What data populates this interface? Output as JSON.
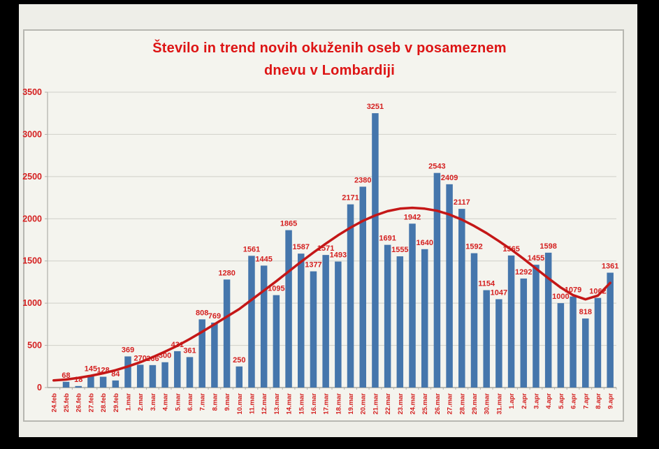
{
  "frame": {
    "background": "#000000",
    "slide_background": "#eeeee8",
    "panel_background": "#f4f4ee"
  },
  "chart_data": {
    "type": "bar",
    "title_line1": "Število in trend novih okuženih oseb v posameznem",
    "title_line2": "dnevu v Lombardiji",
    "title_color": "#dd1414",
    "xlabel": "",
    "ylabel": "",
    "ylim": [
      0,
      3500
    ],
    "yticks": [
      0,
      500,
      1000,
      1500,
      2000,
      2500,
      3000,
      3500
    ],
    "grid": true,
    "legend": "none",
    "bar_color": "#4576ac",
    "value_label_color": "#d42020",
    "axis_label_color": "#d42020",
    "trend_color": "#c41717",
    "categories": [
      "24.feb",
      "25.feb",
      "26.feb",
      "27.feb",
      "28.feb",
      "29.feb",
      "1.mar",
      "2.mar",
      "3.mar",
      "4.mar",
      "5.mar",
      "6.mar",
      "7.mar",
      "8.mar",
      "9.mar",
      "10.mar",
      "11.mar",
      "12.mar",
      "13.mar",
      "14.mar",
      "15.mar",
      "16.mar",
      "17.mar",
      "18.mar",
      "19.mar",
      "20.mar",
      "21.mar",
      "22.mar",
      "23.mar",
      "24.mar",
      "25.mar",
      "26.mar",
      "27.mar",
      "28.mar",
      "29.mar",
      "30.mar",
      "31.mar",
      "1.apr",
      "2.apr",
      "3.apr",
      "4.apr",
      "5.apr",
      "6.apr",
      "7.apr",
      "8.apr",
      "9.apr"
    ],
    "values": [
      0,
      68,
      18,
      145,
      128,
      84,
      369,
      270,
      266,
      300,
      431,
      361,
      808,
      769,
      1280,
      250,
      1561,
      1445,
      1095,
      1865,
      1587,
      1377,
      1571,
      1493,
      2171,
      2380,
      3251,
      1691,
      1555,
      1942,
      1640,
      2543,
      2409,
      2117,
      1592,
      1154,
      1047,
      1565,
      1292,
      1455,
      1598,
      1000,
      1079,
      818,
      1062,
      1361
    ],
    "value_labels": [
      "",
      "68",
      "18",
      "145",
      "128",
      "84",
      "369",
      "270",
      "266",
      "300",
      "431",
      "361",
      "808",
      "769",
      "1280",
      "250",
      "1561",
      "1445",
      "1095",
      "1865",
      "1587",
      "1377",
      "1571",
      "1493",
      "2171",
      "2380",
      "3251",
      "1691",
      "1555",
      "1942",
      "1640",
      "2543",
      "2409",
      "2117",
      "1592",
      "1154",
      "1047",
      "1565",
      "1292",
      "1455",
      "1598",
      "1000",
      "1079",
      "818",
      "1062",
      "1361"
    ],
    "trend_series_name": "trend",
    "trend": [
      85,
      95,
      115,
      140,
      170,
      205,
      250,
      300,
      360,
      425,
      495,
      575,
      660,
      750,
      840,
      930,
      1040,
      1150,
      1260,
      1375,
      1490,
      1600,
      1705,
      1805,
      1895,
      1975,
      2040,
      2090,
      2120,
      2130,
      2120,
      2095,
      2050,
      1990,
      1915,
      1830,
      1735,
      1635,
      1525,
      1410,
      1295,
      1185,
      1095,
      1045,
      1090,
      1240
    ]
  }
}
